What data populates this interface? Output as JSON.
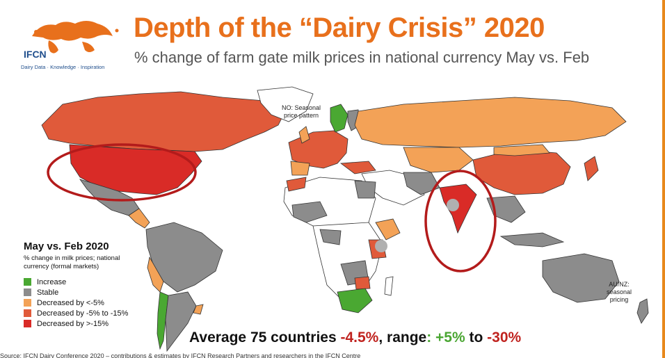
{
  "header": {
    "title": "Depth of the “Dairy Crisis” 2020",
    "subtitle": "% change of farm gate milk prices in national currency May vs. Feb"
  },
  "logo": {
    "name": "IFCN",
    "tagline": "Dairy Data · Knowledge · Inspiration"
  },
  "notes": {
    "norway_line1": "NO: Seasonal",
    "norway_line2": "price pattern",
    "aunz_line1": "AU/NZ:",
    "aunz_line2": "seasonal",
    "aunz_line3": "pricing"
  },
  "legend": {
    "title": "May vs. Feb 2020",
    "subtitle": "% change in milk prices; national currency (formal markets)",
    "items": [
      {
        "label": "Increase",
        "color": "#4aa832"
      },
      {
        "label": "Stable",
        "color": "#8c8c8c"
      },
      {
        "label": "Decreased by <-5%",
        "color": "#f3a257"
      },
      {
        "label": "Decreased by -5% to -15%",
        "color": "#e05a3a"
      },
      {
        "label": "Decreased by >-15%",
        "color": "#d92b27"
      }
    ]
  },
  "summary": {
    "prefix": "Average 75 countries ",
    "average": "-4.5%",
    "range_label": ", range",
    "colon": ": ",
    "range_high": "+5%",
    "to": " to ",
    "range_low": "-30%"
  },
  "source": "Source: IFCN Dairy Conference 2020 – contributions & estimates by IFCN Research Partners and researchers in the IFCN Centre"
}
